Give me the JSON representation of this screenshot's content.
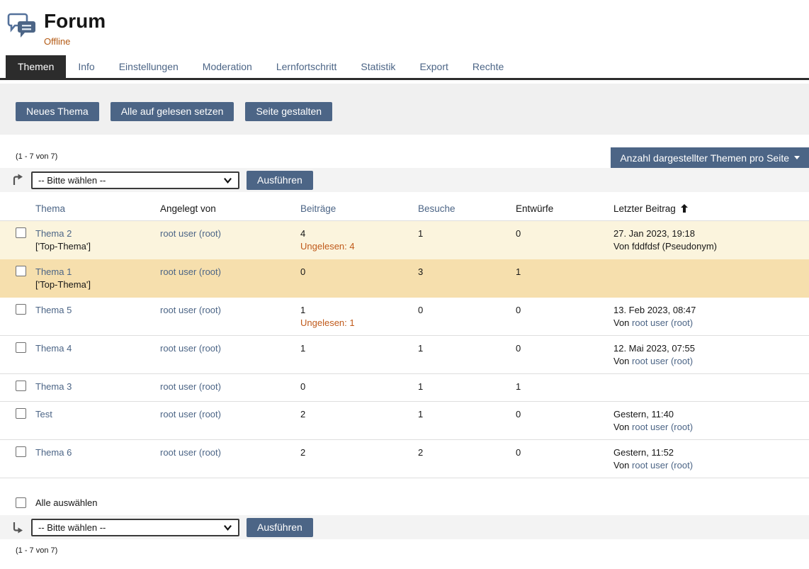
{
  "colors": {
    "accent": "#4c6586",
    "link": "#4c6586",
    "text": "#161616",
    "active_tab_bg": "#2c2c2c",
    "offline": "#b35913",
    "unread": "#c05a1b",
    "toolbar_band": "#f0f0f0",
    "command_band": "#f3f3f3",
    "row_highlight_light": "#fbf4dd",
    "row_highlight_strong": "#f6dfad",
    "table_border": "#dedede"
  },
  "header": {
    "title": "Forum",
    "status": "Offline",
    "icon": "forum-speech-bubbles-icon"
  },
  "tabs": [
    {
      "label": "Themen",
      "active": true
    },
    {
      "label": "Info",
      "active": false
    },
    {
      "label": "Einstellungen",
      "active": false
    },
    {
      "label": "Moderation",
      "active": false
    },
    {
      "label": "Lernfortschritt",
      "active": false
    },
    {
      "label": "Statistik",
      "active": false
    },
    {
      "label": "Export",
      "active": false
    },
    {
      "label": "Rechte",
      "active": false
    }
  ],
  "toolbar": {
    "buttons": [
      {
        "label": "Neues Thema"
      },
      {
        "label": "Alle auf gelesen setzen"
      },
      {
        "label": "Seite gestalten"
      }
    ]
  },
  "pagination": {
    "top": "(1 - 7 von 7)",
    "bottom": "(1 - 7 von 7)"
  },
  "per_page": {
    "label": "Anzahl dargestellter Themen pro Seite",
    "icon": "caret-down-icon"
  },
  "command_bar": {
    "select_value": "-- Bitte wählen --",
    "execute_label": "Ausführen",
    "top_icon": "apply-above-arrow-icon",
    "bottom_icon": "apply-below-arrow-icon"
  },
  "select_all": {
    "label": "Alle auswählen"
  },
  "table": {
    "columns": [
      {
        "label": "Thema",
        "link": true,
        "sorted": ""
      },
      {
        "label": "Angelegt von",
        "link": false,
        "sorted": ""
      },
      {
        "label": "Beiträge",
        "link": true,
        "sorted": ""
      },
      {
        "label": "Besuche",
        "link": true,
        "sorted": ""
      },
      {
        "label": "Entwürfe",
        "link": false,
        "sorted": ""
      },
      {
        "label": "Letzter Beitrag",
        "link": false,
        "sorted": "asc"
      }
    ],
    "rows": [
      {
        "topic": "Thema 2",
        "subtitle": "['Top-Thema']",
        "author": "root user (root)",
        "posts": "4",
        "unread": "Ungelesen: 4",
        "visits": "1",
        "drafts": "0",
        "last_date": "27. Jan 2023, 19:18",
        "last_prefix": "Von",
        "last_author": "fddfdsf (Pseudonym)",
        "last_author_link": false,
        "highlight": "light"
      },
      {
        "topic": "Thema 1",
        "subtitle": "['Top-Thema']",
        "author": "root user (root)",
        "posts": "0",
        "unread": "",
        "visits": "3",
        "drafts": "1",
        "last_date": "",
        "last_prefix": "",
        "last_author": "",
        "last_author_link": false,
        "highlight": "strong"
      },
      {
        "topic": "Thema 5",
        "subtitle": "",
        "author": "root user (root)",
        "posts": "1",
        "unread": "Ungelesen: 1",
        "visits": "0",
        "drafts": "0",
        "last_date": "13. Feb 2023, 08:47",
        "last_prefix": "Von",
        "last_author": "root user (root)",
        "last_author_link": true,
        "highlight": ""
      },
      {
        "topic": "Thema 4",
        "subtitle": "",
        "author": "root user (root)",
        "posts": "1",
        "unread": "",
        "visits": "1",
        "drafts": "0",
        "last_date": "12. Mai 2023, 07:55",
        "last_prefix": "Von",
        "last_author": "root user (root)",
        "last_author_link": true,
        "highlight": ""
      },
      {
        "topic": "Thema 3",
        "subtitle": "",
        "author": "root user (root)",
        "posts": "0",
        "unread": "",
        "visits": "1",
        "drafts": "1",
        "last_date": "",
        "last_prefix": "",
        "last_author": "",
        "last_author_link": false,
        "highlight": ""
      },
      {
        "topic": "Test",
        "subtitle": "",
        "author": "root user (root)",
        "posts": "2",
        "unread": "",
        "visits": "1",
        "drafts": "0",
        "last_date": "Gestern, 11:40",
        "last_prefix": "Von",
        "last_author": "root user (root)",
        "last_author_link": true,
        "highlight": ""
      },
      {
        "topic": "Thema 6",
        "subtitle": "",
        "author": "root user (root)",
        "posts": "2",
        "unread": "",
        "visits": "2",
        "drafts": "0",
        "last_date": "Gestern, 11:52",
        "last_prefix": "Von",
        "last_author": "root user (root)",
        "last_author_link": true,
        "highlight": ""
      }
    ]
  }
}
